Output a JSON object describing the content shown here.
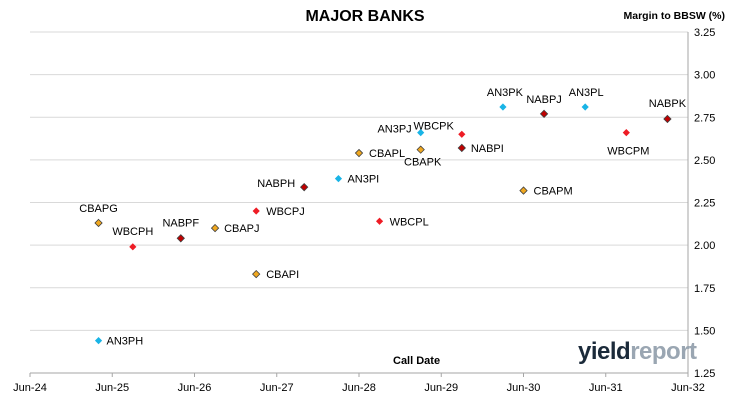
{
  "chart_data": {
    "type": "scatter",
    "title": "MAJOR BANKS",
    "xlabel": "Call Date",
    "ylabel": "Margin to BBSW (%)",
    "ylim": [
      1.25,
      3.25
    ],
    "yticks": [
      "1.25",
      "1.50",
      "1.75",
      "2.00",
      "2.25",
      "2.50",
      "2.75",
      "3.00",
      "3.25"
    ],
    "xlim": [
      "2024-06",
      "2032-06"
    ],
    "xticks": [
      "Jun-24",
      "Jun-25",
      "Jun-26",
      "Jun-27",
      "Jun-28",
      "Jun-29",
      "Jun-30",
      "Jun-31",
      "Jun-32"
    ],
    "grid": true,
    "y_axis_side": "right",
    "colors": {
      "ANZ": "#19b4e6",
      "WBC": "#ee1c25",
      "NAB": "#c00000",
      "CBA": "#f0a820"
    },
    "points": [
      {
        "label": "AN3PH",
        "bank": "ANZ",
        "x": "2025-04",
        "y": 1.44
      },
      {
        "label": "CBAPG",
        "bank": "CBA",
        "x": "2025-04",
        "y": 2.13
      },
      {
        "label": "WBCPH",
        "bank": "WBC",
        "x": "2025-09",
        "y": 1.99
      },
      {
        "label": "NABPF",
        "bank": "NAB",
        "x": "2026-04",
        "y": 2.04
      },
      {
        "label": "CBAPJ",
        "bank": "CBA",
        "x": "2026-09",
        "y": 2.1
      },
      {
        "label": "CBAPI",
        "bank": "CBA",
        "x": "2027-03",
        "y": 1.83
      },
      {
        "label": "WBCPJ",
        "bank": "WBC",
        "x": "2027-03",
        "y": 2.2
      },
      {
        "label": "NABPH",
        "bank": "NAB",
        "x": "2027-10",
        "y": 2.34
      },
      {
        "label": "AN3PI",
        "bank": "ANZ",
        "x": "2028-03",
        "y": 2.39
      },
      {
        "label": "CBAPL",
        "bank": "CBA",
        "x": "2028-06",
        "y": 2.54
      },
      {
        "label": "WBCPL",
        "bank": "WBC",
        "x": "2028-09",
        "y": 2.14
      },
      {
        "label": "AN3PJ",
        "bank": "ANZ",
        "x": "2029-03",
        "y": 2.66
      },
      {
        "label": "CBAPK",
        "bank": "CBA",
        "x": "2029-03",
        "y": 2.56
      },
      {
        "label": "WBCPK",
        "bank": "WBC",
        "x": "2029-09",
        "y": 2.65
      },
      {
        "label": "NABPI",
        "bank": "NAB",
        "x": "2029-09",
        "y": 2.57
      },
      {
        "label": "AN3PK",
        "bank": "ANZ",
        "x": "2030-03",
        "y": 2.81
      },
      {
        "label": "CBAPM",
        "bank": "CBA",
        "x": "2030-06",
        "y": 2.32
      },
      {
        "label": "NABPJ",
        "bank": "NAB",
        "x": "2030-09",
        "y": 2.77
      },
      {
        "label": "AN3PL",
        "bank": "ANZ",
        "x": "2031-03",
        "y": 2.81
      },
      {
        "label": "WBCPM",
        "bank": "WBC",
        "x": "2031-09",
        "y": 2.66
      },
      {
        "label": "NABPK",
        "bank": "NAB",
        "x": "2032-03",
        "y": 2.74
      }
    ]
  },
  "watermark": {
    "part1": "yield",
    "part2": "report"
  }
}
